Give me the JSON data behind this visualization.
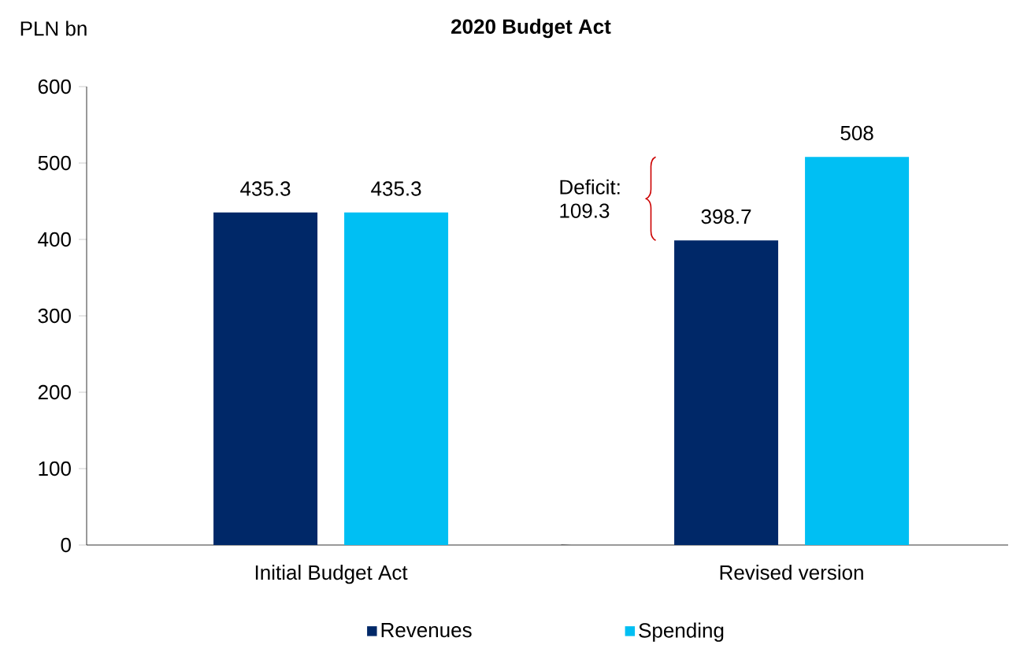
{
  "chart_data": {
    "type": "bar",
    "title": "2020 Budget Act",
    "ylabel": "PLN bn",
    "categories": [
      "Initial Budget Act",
      "Revised version"
    ],
    "series": [
      {
        "name": "Revenues",
        "color": "#002868",
        "values": [
          435.3,
          398.7
        ]
      },
      {
        "name": "Spending",
        "color": "#00bff3",
        "values": [
          435.3,
          508
        ]
      }
    ],
    "ylim": [
      0,
      600
    ],
    "yticks": [
      0,
      100,
      200,
      300,
      400,
      500,
      600
    ],
    "data_labels": true,
    "legend": "bottom",
    "grid": false,
    "annotations": [
      "Deficit: 109.3"
    ]
  }
}
